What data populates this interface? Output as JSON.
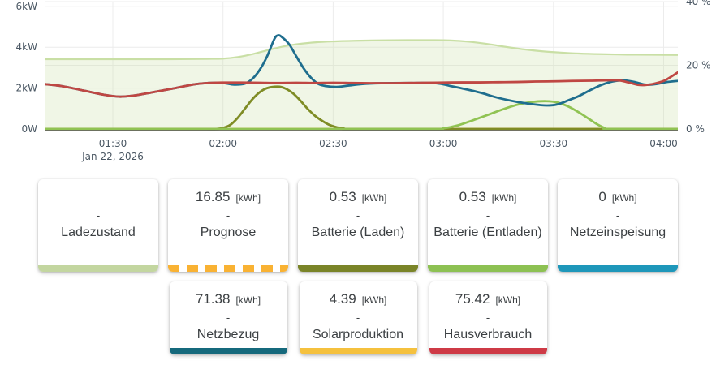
{
  "chart_data": {
    "type": "line",
    "title": "",
    "date_label": "Jan 22, 2026",
    "x_unit": "hour_of_day",
    "x_range": [
      1.19,
      4.06
    ],
    "x_ticks": [
      {
        "h": 1.5,
        "label": "01:30"
      },
      {
        "h": 2.0,
        "label": "02:00"
      },
      {
        "h": 2.5,
        "label": "02:30"
      },
      {
        "h": 3.0,
        "label": "03:00"
      },
      {
        "h": 3.5,
        "label": "03:30"
      },
      {
        "h": 4.0,
        "label": "04:00"
      }
    ],
    "left_axis": {
      "unit": "kW",
      "range": [
        0,
        6.3
      ],
      "ticks": [
        {
          "v": 0,
          "label": "0W"
        },
        {
          "v": 2,
          "label": "2kW"
        },
        {
          "v": 4,
          "label": "4kW"
        },
        {
          "v": 6,
          "label": "6kW"
        }
      ]
    },
    "right_axis": {
      "unit": "%",
      "range": [
        0,
        40.5
      ],
      "ticks": [
        {
          "v": 0,
          "label": "0 %"
        },
        {
          "v": 20,
          "label": "20 %"
        },
        {
          "v": 40,
          "label": "40 %"
        }
      ]
    },
    "grid": true,
    "grid_color": "#ececec",
    "axis_line_color": "#54575b",
    "axis_text_color": "#4a5763",
    "series": [
      {
        "name": "Ladezustand",
        "axis": "right",
        "color": "#c9dfa5",
        "fill": "rgba(201,223,165,0.28)",
        "width": 2.2,
        "points": [
          [
            1.167,
            21.9
          ],
          [
            1.5,
            21.9
          ],
          [
            1.75,
            21.9
          ],
          [
            1.917,
            22.0
          ],
          [
            2.0,
            22.1
          ],
          [
            2.067,
            22.6
          ],
          [
            2.133,
            23.5
          ],
          [
            2.2,
            24.7
          ],
          [
            2.267,
            25.8
          ],
          [
            2.333,
            26.6
          ],
          [
            2.417,
            27.2
          ],
          [
            2.5,
            27.5
          ],
          [
            2.6,
            27.7
          ],
          [
            2.717,
            27.85
          ],
          [
            2.833,
            27.9
          ],
          [
            2.95,
            27.9
          ],
          [
            3.033,
            27.8
          ],
          [
            3.117,
            27.4
          ],
          [
            3.2,
            26.7
          ],
          [
            3.283,
            25.8
          ],
          [
            3.367,
            25.0
          ],
          [
            3.45,
            24.4
          ],
          [
            3.533,
            24.0
          ],
          [
            3.617,
            23.7
          ],
          [
            3.717,
            23.5
          ],
          [
            3.833,
            23.35
          ],
          [
            3.95,
            23.3
          ],
          [
            4.083,
            23.25
          ]
        ]
      },
      {
        "name": "Solarproduktion",
        "axis": "left",
        "color": "#efab1f",
        "width": 2.8,
        "points": [
          [
            1.167,
            0
          ],
          [
            2.5,
            0
          ],
          [
            4.083,
            0
          ]
        ]
      },
      {
        "name": "Batterie (Laden)",
        "axis": "left",
        "color": "#7f8c25",
        "width": 2.8,
        "points": [
          [
            1.167,
            0
          ],
          [
            1.6,
            0
          ],
          [
            1.9,
            0
          ],
          [
            1.967,
            0
          ],
          [
            2.0,
            0.05
          ],
          [
            2.033,
            0.2
          ],
          [
            2.067,
            0.55
          ],
          [
            2.1,
            1.0
          ],
          [
            2.133,
            1.45
          ],
          [
            2.167,
            1.8
          ],
          [
            2.2,
            2.0
          ],
          [
            2.25,
            2.07
          ],
          [
            2.283,
            1.98
          ],
          [
            2.317,
            1.75
          ],
          [
            2.35,
            1.4
          ],
          [
            2.383,
            1.0
          ],
          [
            2.417,
            0.65
          ],
          [
            2.45,
            0.4
          ],
          [
            2.483,
            0.2
          ],
          [
            2.517,
            0.08
          ],
          [
            2.55,
            0.02
          ],
          [
            2.583,
            0
          ],
          [
            3.0,
            0
          ],
          [
            4.083,
            0
          ]
        ]
      },
      {
        "name": "Batterie (Entladen)",
        "axis": "left",
        "color": "#90c353",
        "width": 2.8,
        "points": [
          [
            1.167,
            0
          ],
          [
            2.5,
            0
          ],
          [
            2.95,
            0
          ],
          [
            3.0,
            0.03
          ],
          [
            3.067,
            0.18
          ],
          [
            3.133,
            0.42
          ],
          [
            3.2,
            0.68
          ],
          [
            3.267,
            0.95
          ],
          [
            3.333,
            1.18
          ],
          [
            3.4,
            1.32
          ],
          [
            3.467,
            1.36
          ],
          [
            3.517,
            1.3
          ],
          [
            3.567,
            1.1
          ],
          [
            3.617,
            0.8
          ],
          [
            3.667,
            0.45
          ],
          [
            3.7,
            0.22
          ],
          [
            3.733,
            0.05
          ],
          [
            3.758,
            0
          ],
          [
            4.083,
            0
          ]
        ]
      },
      {
        "name": "Netzbezug",
        "axis": "left",
        "color": "#1f6e8e",
        "width": 2.8,
        "points": [
          [
            1.167,
            2.22
          ],
          [
            1.267,
            2.1
          ],
          [
            1.367,
            1.88
          ],
          [
            1.467,
            1.66
          ],
          [
            1.533,
            1.58
          ],
          [
            1.6,
            1.64
          ],
          [
            1.683,
            1.8
          ],
          [
            1.783,
            2.0
          ],
          [
            1.867,
            2.18
          ],
          [
            1.933,
            2.25
          ],
          [
            2.0,
            2.25
          ],
          [
            2.05,
            2.17
          ],
          [
            2.1,
            2.22
          ],
          [
            2.133,
            2.45
          ],
          [
            2.167,
            2.9
          ],
          [
            2.2,
            3.55
          ],
          [
            2.233,
            4.4
          ],
          [
            2.25,
            4.58
          ],
          [
            2.267,
            4.5
          ],
          [
            2.3,
            4.15
          ],
          [
            2.333,
            3.55
          ],
          [
            2.367,
            2.95
          ],
          [
            2.4,
            2.5
          ],
          [
            2.433,
            2.2
          ],
          [
            2.467,
            2.1
          ],
          [
            2.517,
            2.06
          ],
          [
            2.567,
            2.12
          ],
          [
            2.633,
            2.2
          ],
          [
            2.717,
            2.24
          ],
          [
            2.833,
            2.25
          ],
          [
            2.967,
            2.24
          ],
          [
            3.033,
            2.1
          ],
          [
            3.1,
            1.95
          ],
          [
            3.167,
            1.78
          ],
          [
            3.25,
            1.52
          ],
          [
            3.333,
            1.33
          ],
          [
            3.4,
            1.22
          ],
          [
            3.467,
            1.15
          ],
          [
            3.517,
            1.2
          ],
          [
            3.567,
            1.4
          ],
          [
            3.617,
            1.62
          ],
          [
            3.667,
            1.9
          ],
          [
            3.717,
            2.15
          ],
          [
            3.767,
            2.32
          ],
          [
            3.817,
            2.38
          ],
          [
            3.867,
            2.3
          ],
          [
            3.917,
            2.17
          ],
          [
            3.967,
            2.2
          ],
          [
            4.017,
            2.3
          ],
          [
            4.083,
            2.37
          ]
        ]
      },
      {
        "name": "Hausverbrauch",
        "axis": "left",
        "color": "#bf4743",
        "width": 2.8,
        "points": [
          [
            1.167,
            2.22
          ],
          [
            1.267,
            2.1
          ],
          [
            1.367,
            1.88
          ],
          [
            1.467,
            1.66
          ],
          [
            1.533,
            1.58
          ],
          [
            1.6,
            1.64
          ],
          [
            1.683,
            1.8
          ],
          [
            1.783,
            2.0
          ],
          [
            1.867,
            2.18
          ],
          [
            1.933,
            2.25
          ],
          [
            2.0,
            2.27
          ],
          [
            2.083,
            2.27
          ],
          [
            2.167,
            2.26
          ],
          [
            2.25,
            2.25
          ],
          [
            2.333,
            2.26
          ],
          [
            2.417,
            2.25
          ],
          [
            2.5,
            2.26
          ],
          [
            2.583,
            2.25
          ],
          [
            2.667,
            2.24
          ],
          [
            2.75,
            2.24
          ],
          [
            2.833,
            2.25
          ],
          [
            2.917,
            2.26
          ],
          [
            3.0,
            2.27
          ],
          [
            3.083,
            2.28
          ],
          [
            3.167,
            2.28
          ],
          [
            3.25,
            2.29
          ],
          [
            3.333,
            2.3
          ],
          [
            3.417,
            2.32
          ],
          [
            3.5,
            2.33
          ],
          [
            3.583,
            2.35
          ],
          [
            3.667,
            2.36
          ],
          [
            3.75,
            2.38
          ],
          [
            3.8,
            2.37
          ],
          [
            3.85,
            2.25
          ],
          [
            3.883,
            2.16
          ],
          [
            3.917,
            2.15
          ],
          [
            3.95,
            2.2
          ],
          [
            4.0,
            2.35
          ],
          [
            4.033,
            2.55
          ],
          [
            4.083,
            2.9
          ]
        ]
      }
    ]
  },
  "cards": {
    "separator": "-",
    "row1": [
      {
        "value": "",
        "unit": "",
        "label": "Ladezustand",
        "color": "#c3d6a0",
        "dashed": false
      },
      {
        "value": "16.85",
        "unit": "[kWh]",
        "label": "Prognose",
        "color": "#f9b233",
        "dashed": true
      },
      {
        "value": "0.53",
        "unit": "[kWh]",
        "label": "Batterie (Laden)",
        "color": "#7a8428",
        "dashed": false
      },
      {
        "value": "0.53",
        "unit": "[kWh]",
        "label": "Batterie (Entladen)",
        "color": "#8dc153",
        "dashed": false
      },
      {
        "value": "0",
        "unit": "[kWh]",
        "label": "Netzeinspeisung",
        "color": "#1e97ba",
        "dashed": false
      }
    ],
    "row2": [
      {
        "value": "71.38",
        "unit": "[kWh]",
        "label": "Netzbezug",
        "color": "#15697c",
        "dashed": false
      },
      {
        "value": "4.39",
        "unit": "[kWh]",
        "label": "Solarproduktion",
        "color": "#f5c13e",
        "dashed": false
      },
      {
        "value": "75.42",
        "unit": "[kWh]",
        "label": "Hausverbrauch",
        "color": "#ce3a46",
        "dashed": false
      }
    ]
  }
}
